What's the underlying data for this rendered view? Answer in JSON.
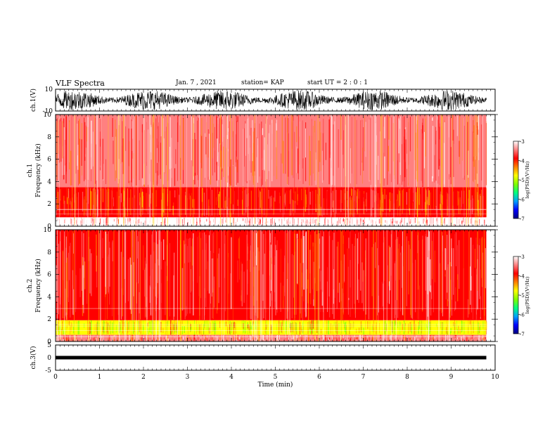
{
  "header": {
    "title": "VLF Spectra",
    "date": "Jan. 7 , 2021",
    "station": "station= KAP",
    "start": "start UT =  2 : 0 : 1"
  },
  "colors": {
    "colormap": [
      "#000080",
      "#0000ff",
      "#00a0ff",
      "#00ff80",
      "#80ff00",
      "#ffff00",
      "#ff8000",
      "#ff0000",
      "#ff8080",
      "#ffffff"
    ],
    "waveform": "#000000"
  },
  "chart_data": [
    {
      "type": "line",
      "panel": "waveform-ch1",
      "ylabel": "ch.1(V)",
      "ytick_labels": [
        "10",
        "-10"
      ],
      "ylim": [
        -10,
        10
      ],
      "xlim": [
        0,
        10
      ],
      "note_series": "oscillating waveform, envelope roughly -8 to 8 V",
      "x_end": 9.8
    },
    {
      "type": "heatmap",
      "panel": "spectrogram-ch1",
      "ylabel": "ch.1 Frequency (kHz)",
      "yticks": [
        0,
        2,
        4,
        6,
        8,
        10
      ],
      "ylim": [
        0,
        10
      ],
      "xlim": [
        0,
        10
      ],
      "x_end": 9.8,
      "colorbar": {
        "label": "log(PSD)(V²/Hz)",
        "range": [
          -7,
          -3
        ],
        "ticks": [
          -3,
          -4,
          -5,
          -6,
          -7
        ]
      },
      "bands": [
        {
          "f_min": 0.0,
          "f_max": 0.8,
          "log_psd": -3.2
        },
        {
          "f_min": 0.8,
          "f_max": 3.5,
          "log_psd": -4.0
        },
        {
          "f_min": 3.5,
          "f_max": 10.0,
          "log_psd": -3.6
        }
      ]
    },
    {
      "type": "heatmap",
      "panel": "spectrogram-ch2",
      "ylabel": "ch.2 Frequency (kHz)",
      "yticks": [
        0,
        2,
        4,
        6,
        8,
        10
      ],
      "ylim": [
        0,
        10
      ],
      "xlim": [
        0,
        10
      ],
      "x_end": 9.8,
      "colorbar": {
        "label": "log(PSD)(V²/Hz)",
        "range": [
          -7,
          -3
        ],
        "ticks": [
          -3,
          -4,
          -5,
          -6,
          -7
        ]
      },
      "bands": [
        {
          "f_min": 0.0,
          "f_max": 0.6,
          "log_psd": -3.6
        },
        {
          "f_min": 0.6,
          "f_max": 1.9,
          "log_psd": -4.7
        },
        {
          "f_min": 1.9,
          "f_max": 10.0,
          "log_psd": -3.7
        }
      ]
    },
    {
      "type": "line",
      "panel": "waveform-ch3",
      "ylabel": "ch.3(V)",
      "ytick_labels": [
        "5",
        "0",
        "-5"
      ],
      "ylim": [
        -5,
        5
      ],
      "xlim": [
        0,
        10
      ],
      "x_end": 9.8,
      "level_v": 0
    }
  ],
  "axes": {
    "xlabel": "Time (min)",
    "xticks": [
      0,
      1,
      2,
      3,
      4,
      5,
      6,
      7,
      8,
      9,
      10
    ]
  }
}
